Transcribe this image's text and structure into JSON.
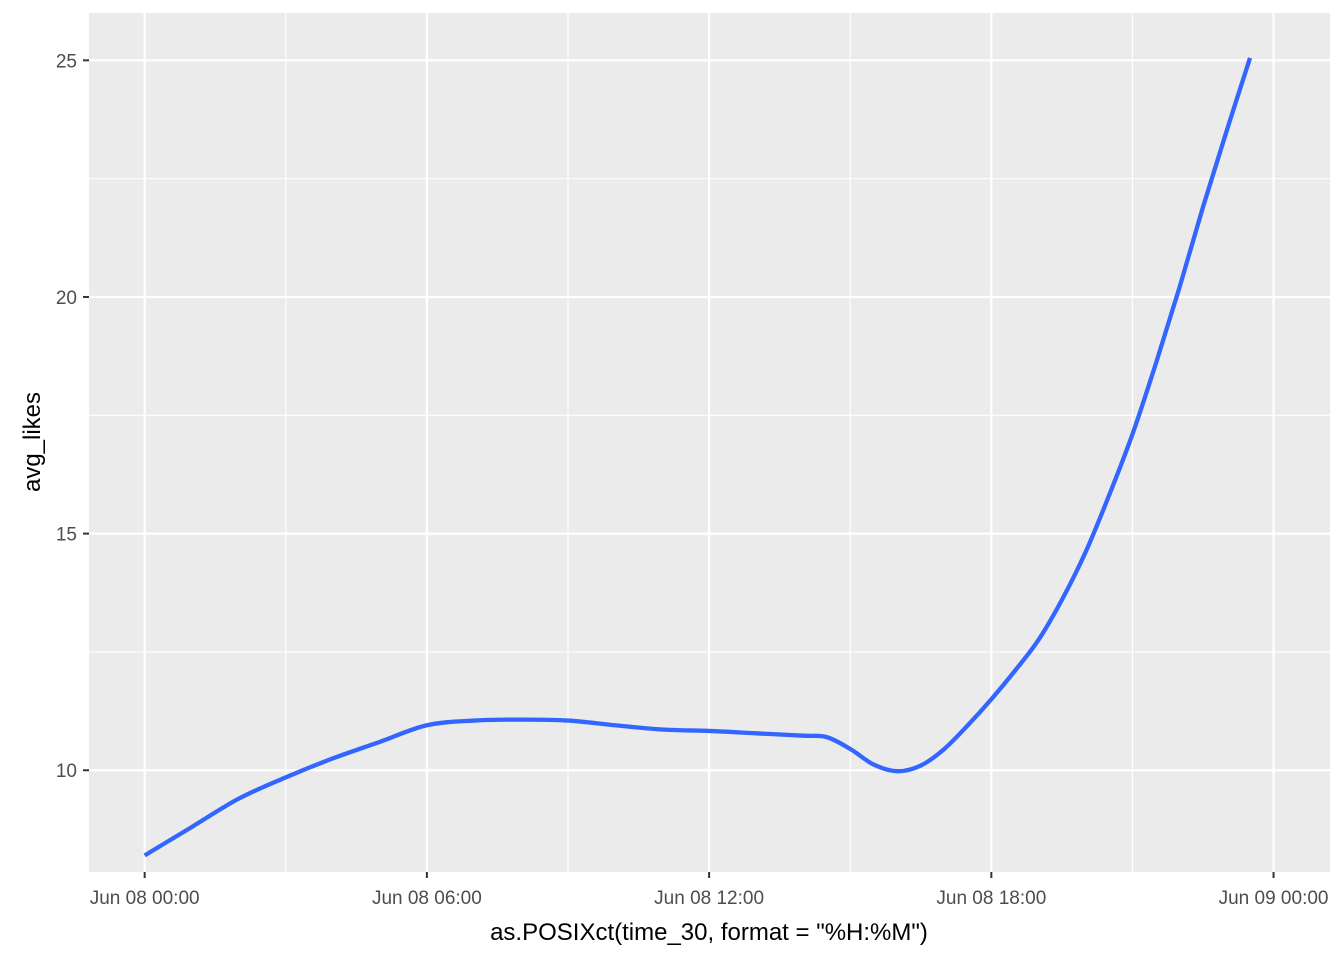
{
  "chart_data": {
    "type": "line",
    "title": "",
    "xlabel": "as.POSIXct(time_30, format = \"%H:%M\")",
    "ylabel": "avg_likes",
    "x_axis_type": "datetime",
    "xlim": [
      "2021-06-07T22:49:00",
      "2021-06-09T01:12:00"
    ],
    "ylim": [
      7.85,
      26.0
    ],
    "grid": true,
    "legend": "none",
    "x_major_ticks": [
      {
        "x": "2021-06-08T00:00",
        "label": "Jun 08 00:00"
      },
      {
        "x": "2021-06-08T06:00",
        "label": "Jun 08 06:00"
      },
      {
        "x": "2021-06-08T12:00",
        "label": "Jun 08 12:00"
      },
      {
        "x": "2021-06-08T18:00",
        "label": "Jun 08 18:00"
      },
      {
        "x": "2021-06-09T00:00",
        "label": "Jun 09 00:00"
      }
    ],
    "x_minor_ticks": [
      "2021-06-08T03:00",
      "2021-06-08T09:00",
      "2021-06-08T15:00",
      "2021-06-08T21:00"
    ],
    "y_major_ticks": [
      {
        "y": 10,
        "label": "10"
      },
      {
        "y": 15,
        "label": "15"
      },
      {
        "y": 20,
        "label": "20"
      },
      {
        "y": 25,
        "label": "25"
      }
    ],
    "y_minor_ticks": [
      7.5,
      12.5,
      17.5,
      22.5
    ],
    "series": [
      {
        "color": "#3366ff",
        "x": [
          "2021-06-08T00:00",
          "2021-06-08T01:00",
          "2021-06-08T02:00",
          "2021-06-08T03:00",
          "2021-06-08T04:00",
          "2021-06-08T05:00",
          "2021-06-08T06:00",
          "2021-06-08T07:00",
          "2021-06-08T08:00",
          "2021-06-08T09:00",
          "2021-06-08T10:00",
          "2021-06-08T11:00",
          "2021-06-08T12:00",
          "2021-06-08T13:00",
          "2021-06-08T14:00",
          "2021-06-08T14:30",
          "2021-06-08T15:00",
          "2021-06-08T15:30",
          "2021-06-08T16:00",
          "2021-06-08T16:30",
          "2021-06-08T17:00",
          "2021-06-08T17:30",
          "2021-06-08T18:00",
          "2021-06-08T18:30",
          "2021-06-08T19:00",
          "2021-06-08T19:30",
          "2021-06-08T20:00",
          "2021-06-08T20:30",
          "2021-06-08T21:00",
          "2021-06-08T21:30",
          "2021-06-08T22:00",
          "2021-06-08T22:30",
          "2021-06-08T23:00",
          "2021-06-08T23:30"
        ],
        "values": [
          8.2,
          8.8,
          9.4,
          9.85,
          10.25,
          10.6,
          10.95,
          11.05,
          11.07,
          11.05,
          10.95,
          10.86,
          10.83,
          10.78,
          10.73,
          10.7,
          10.45,
          10.12,
          9.98,
          10.1,
          10.45,
          10.95,
          11.5,
          12.1,
          12.75,
          13.6,
          14.6,
          15.8,
          17.1,
          18.6,
          20.2,
          21.9,
          23.5,
          25.05
        ]
      }
    ]
  }
}
